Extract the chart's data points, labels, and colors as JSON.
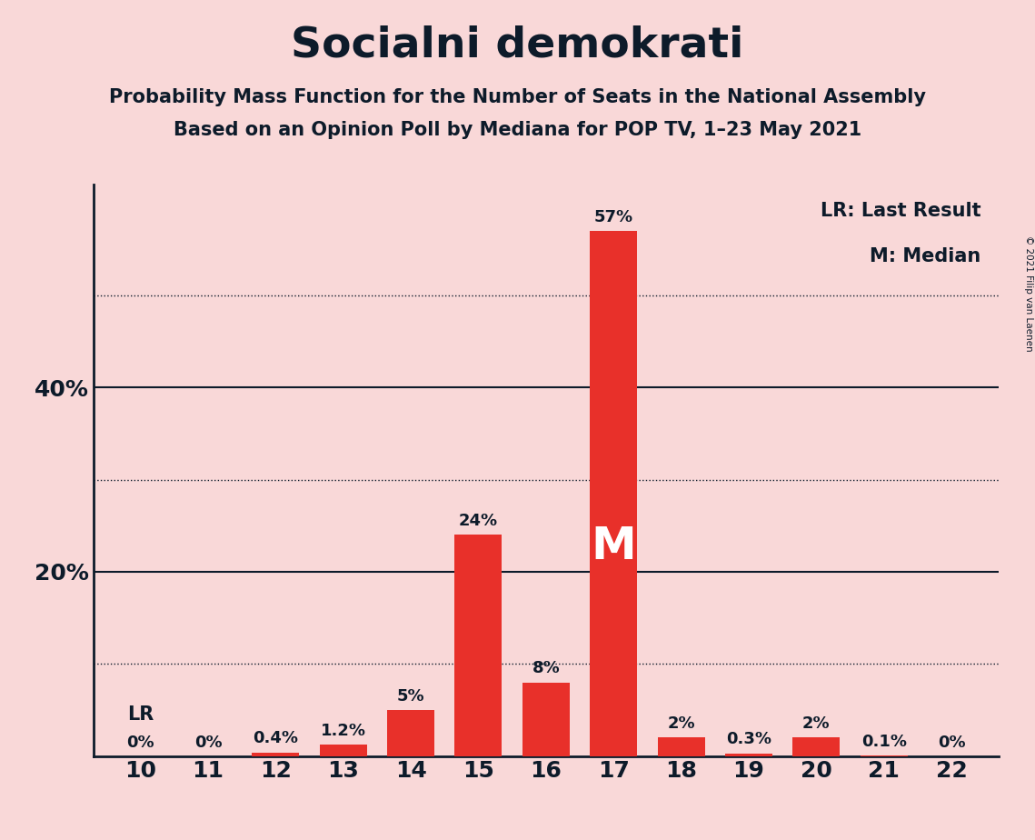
{
  "title": "Socialni demokrati",
  "subtitle1": "Probability Mass Function for the Number of Seats in the National Assembly",
  "subtitle2": "Based on an Opinion Poll by Mediana for POP TV, 1–23 May 2021",
  "copyright": "© 2021 Filip van Laenen",
  "categories": [
    10,
    11,
    12,
    13,
    14,
    15,
    16,
    17,
    18,
    19,
    20,
    21,
    22
  ],
  "values": [
    0.0,
    0.0,
    0.4,
    1.2,
    5.0,
    24.0,
    8.0,
    57.0,
    2.0,
    0.3,
    2.0,
    0.1,
    0.0
  ],
  "labels": [
    "0%",
    "0%",
    "0.4%",
    "1.2%",
    "5%",
    "24%",
    "8%",
    "57%",
    "2%",
    "0.3%",
    "2%",
    "0.1%",
    "0%"
  ],
  "bar_color": "#e8302a",
  "background_color": "#f9d8d8",
  "text_color": "#0d1b2a",
  "median_seat": 17,
  "lr_seat": 10,
  "solid_gridlines": [
    20,
    40
  ],
  "dotted_gridlines": [
    10,
    30,
    50
  ],
  "ylim_max": 62,
  "legend_lr": "LR: Last Result",
  "legend_m": "M: Median",
  "lr_label": "LR",
  "m_label": "M",
  "ytick_positions": [
    20,
    40
  ],
  "ytick_labels": [
    "20%",
    "40%"
  ]
}
